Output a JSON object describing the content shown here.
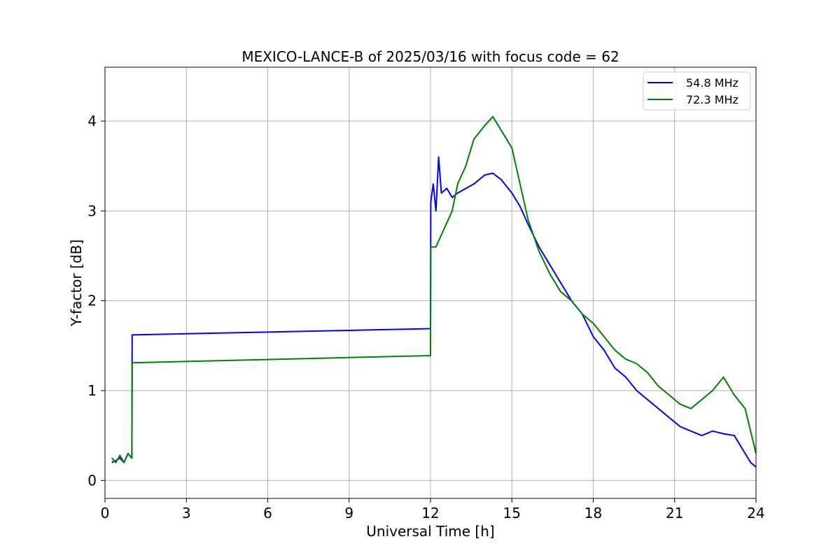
{
  "chart_data": {
    "type": "line",
    "title": "MEXICO-LANCE-B of 2025/03/16 with focus code = 62",
    "xlabel": "Universal Time [h]",
    "ylabel": "Y-factor [dB]",
    "xlim": [
      0,
      24
    ],
    "ylim": [
      -0.2,
      4.6
    ],
    "xticks": [
      0,
      3,
      6,
      9,
      12,
      15,
      18,
      21,
      24
    ],
    "yticks": [
      0,
      1,
      2,
      3,
      4
    ],
    "grid": true,
    "legend_position": "top-right",
    "series": [
      {
        "name": "54.8 MHz",
        "color": "#0000ff",
        "x": [
          0.25,
          0.4,
          0.55,
          0.7,
          0.85,
          0.98,
          0.99,
          1.0,
          12.0,
          12.01,
          12.1,
          12.2,
          12.3,
          12.4,
          12.6,
          12.8,
          13.0,
          13.3,
          13.6,
          14.0,
          14.3,
          14.6,
          15.0,
          15.3,
          15.6,
          16.0,
          16.4,
          16.8,
          17.2,
          17.6,
          18.0,
          18.4,
          18.8,
          19.2,
          19.6,
          20.0,
          20.4,
          20.8,
          21.2,
          21.6,
          22.0,
          22.4,
          22.8,
          23.2,
          23.5,
          23.8,
          24.0
        ],
        "y": [
          0.2,
          0.22,
          0.25,
          0.2,
          0.3,
          0.25,
          0.25,
          1.62,
          1.69,
          3.1,
          3.3,
          3.0,
          3.6,
          3.2,
          3.25,
          3.15,
          3.2,
          3.25,
          3.3,
          3.4,
          3.42,
          3.35,
          3.2,
          3.05,
          2.85,
          2.6,
          2.4,
          2.2,
          2.0,
          1.85,
          1.6,
          1.45,
          1.25,
          1.15,
          1.0,
          0.9,
          0.8,
          0.7,
          0.6,
          0.55,
          0.5,
          0.55,
          0.52,
          0.5,
          0.35,
          0.2,
          0.15
        ]
      },
      {
        "name": "72.3 MHz",
        "color": "#008000",
        "x": [
          0.25,
          0.4,
          0.55,
          0.7,
          0.85,
          0.98,
          0.99,
          1.0,
          12.0,
          12.01,
          12.2,
          12.5,
          12.8,
          13.0,
          13.3,
          13.6,
          14.0,
          14.3,
          14.6,
          15.0,
          15.3,
          15.6,
          16.0,
          16.4,
          16.8,
          17.2,
          17.6,
          18.0,
          18.4,
          18.8,
          19.2,
          19.6,
          20.0,
          20.4,
          20.8,
          21.2,
          21.6,
          22.0,
          22.4,
          22.8,
          23.2,
          23.6,
          24.0
        ],
        "y": [
          0.25,
          0.2,
          0.28,
          0.2,
          0.3,
          0.25,
          0.25,
          1.31,
          1.39,
          2.6,
          2.6,
          2.8,
          3.0,
          3.3,
          3.5,
          3.8,
          3.95,
          4.05,
          3.9,
          3.7,
          3.3,
          2.9,
          2.55,
          2.3,
          2.1,
          2.0,
          1.85,
          1.75,
          1.6,
          1.45,
          1.35,
          1.3,
          1.2,
          1.05,
          0.95,
          0.85,
          0.8,
          0.9,
          1.0,
          1.15,
          0.95,
          0.8,
          0.3
        ]
      }
    ]
  }
}
